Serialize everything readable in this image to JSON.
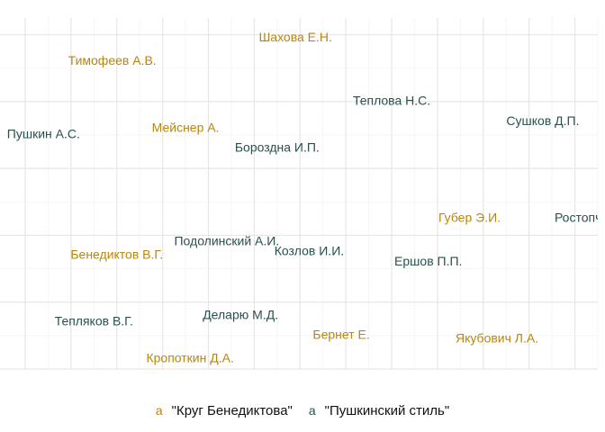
{
  "chart_data": {
    "type": "scatter",
    "title": "",
    "xlabel": "",
    "ylabel": "",
    "xlim": [
      0,
      12.5
    ],
    "ylim": [
      0,
      10.5
    ],
    "grid": true,
    "legend_position": "bottom",
    "series": [
      {
        "name": "\"Круг Бенедиктова\"",
        "color": "#b8860b",
        "marker_glyph": "a",
        "points": [
          {
            "label": "Шахова Е.Н.",
            "x": 5.9,
            "y": 9.9
          },
          {
            "label": "Тимофеев А.В.",
            "x": 1.9,
            "y": 9.2
          },
          {
            "label": "Мейснер А.",
            "x": 3.5,
            "y": 7.2
          },
          {
            "label": "Губер Э.И.",
            "x": 9.7,
            "y": 4.5
          },
          {
            "label": "Бенедиктов В.Г.",
            "x": 2.0,
            "y": 3.4
          },
          {
            "label": "Бернет Е.",
            "x": 6.9,
            "y": 1.0
          },
          {
            "label": "Якубович Л.А.",
            "x": 10.3,
            "y": 0.9
          },
          {
            "label": "Кропоткин Д.А.",
            "x": 3.6,
            "y": 0.3
          }
        ]
      },
      {
        "name": "\"Пушкинский стиль\"",
        "color": "#27504f",
        "marker_glyph": "a",
        "points": [
          {
            "label": "Теплова Н.С.",
            "x": 8.0,
            "y": 8.0
          },
          {
            "label": "Сушков Д.П.",
            "x": 11.3,
            "y": 7.4
          },
          {
            "label": "Пушкин А.С.",
            "x": 0.4,
            "y": 7.0
          },
          {
            "label": "Бороздна И.П.",
            "x": 5.5,
            "y": 6.6
          },
          {
            "label": "Ростопчина",
            "x": 12.3,
            "y": 4.5
          },
          {
            "label": "Подолинский А.И.",
            "x": 4.4,
            "y": 3.8
          },
          {
            "label": "Козлов И.И.",
            "x": 6.2,
            "y": 3.5
          },
          {
            "label": "Ершов П.П.",
            "x": 8.8,
            "y": 3.2
          },
          {
            "label": "Деларю М.Д.",
            "x": 4.7,
            "y": 1.6
          },
          {
            "label": "Тепляков В.Г.",
            "x": 1.5,
            "y": 1.4
          }
        ]
      }
    ]
  },
  "legend": {
    "key_glyph": "a",
    "items": [
      {
        "label": "\"Круг Бенедиктова\"",
        "color": "#b8860b"
      },
      {
        "label": "\"Пушкинский стиль\"",
        "color": "#27504f"
      }
    ]
  }
}
